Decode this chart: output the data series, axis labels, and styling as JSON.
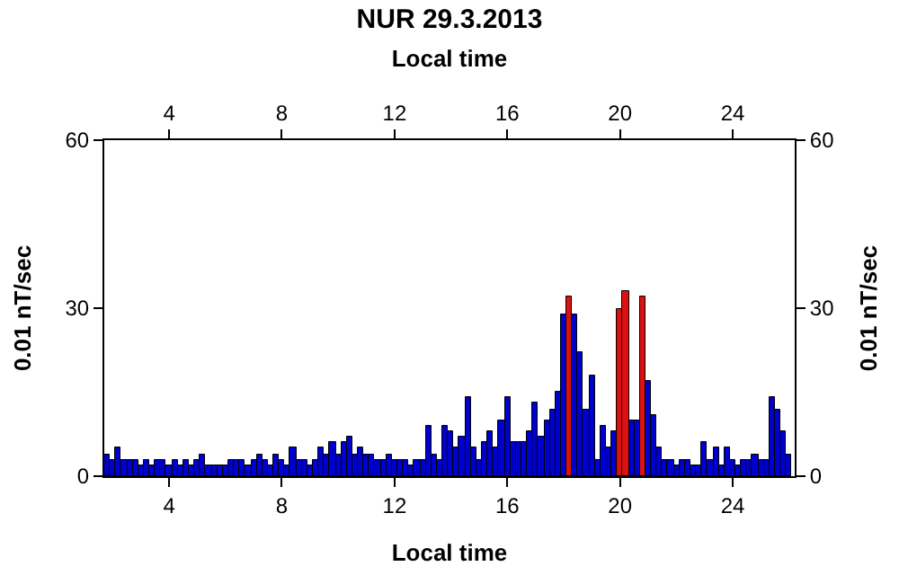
{
  "chart_data": {
    "type": "bar",
    "title": "NUR 29.3.2013",
    "xlabel": "Local time",
    "x2label": "Local time",
    "ylabel": "0.01 nT/sec",
    "y2label": "0.01 nT/sec",
    "x": [
      1.8,
      2.0,
      2.2,
      2.4,
      2.6,
      2.8,
      3.0,
      3.2,
      3.4,
      3.6,
      3.8,
      4.0,
      4.2,
      4.4,
      4.6,
      4.8,
      5.0,
      5.2,
      5.4,
      5.6,
      5.8,
      6.0,
      6.2,
      6.4,
      6.6,
      6.8,
      7.0,
      7.2,
      7.4,
      7.6,
      7.8,
      8.0,
      8.2,
      8.4,
      8.6,
      8.8,
      9.0,
      9.2,
      9.4,
      9.6,
      9.8,
      10.0,
      10.2,
      10.4,
      10.6,
      10.8,
      11.0,
      11.2,
      11.4,
      11.6,
      11.8,
      12.0,
      12.2,
      12.4,
      12.6,
      12.8,
      13.0,
      13.2,
      13.4,
      13.6,
      13.8,
      14.0,
      14.2,
      14.4,
      14.6,
      14.8,
      15.0,
      15.2,
      15.4,
      15.6,
      15.8,
      16.0,
      16.2,
      16.4,
      16.6,
      16.8,
      17.0,
      17.2,
      17.4,
      17.6,
      17.8,
      18.0,
      18.2,
      18.4,
      18.6,
      18.8,
      19.0,
      19.2,
      19.4,
      19.6,
      19.8,
      20.0,
      20.2,
      20.4,
      20.6,
      20.8,
      21.0,
      21.2,
      21.4,
      21.6,
      21.8,
      22.0,
      22.2,
      22.4,
      22.6,
      22.8,
      23.0,
      23.2,
      23.4,
      23.6,
      23.8,
      24.0,
      24.2,
      24.4,
      24.6,
      24.8,
      25.0,
      25.2,
      25.4,
      25.6,
      25.8,
      26.0
    ],
    "values": [
      4,
      3,
      5,
      3,
      3,
      3,
      2,
      3,
      2,
      3,
      3,
      2,
      3,
      2,
      3,
      2,
      3,
      4,
      2,
      2,
      2,
      2,
      3,
      3,
      3,
      2,
      3,
      4,
      3,
      2,
      4,
      3,
      2,
      5,
      3,
      3,
      2,
      3,
      5,
      4,
      6,
      4,
      6,
      7,
      4,
      5,
      4,
      4,
      3,
      3,
      4,
      3,
      3,
      3,
      2,
      3,
      3,
      9,
      4,
      3,
      9,
      8,
      5,
      7,
      14,
      5,
      3,
      6,
      8,
      5,
      10,
      14,
      6,
      6,
      6,
      8,
      13,
      7,
      10,
      12,
      15,
      29,
      32,
      29,
      22,
      12,
      18,
      3,
      9,
      5,
      8,
      30,
      33,
      10,
      10,
      32,
      17,
      11,
      5,
      3,
      3,
      2,
      3,
      3,
      2,
      2,
      6,
      3,
      5,
      2,
      5,
      3,
      2,
      3,
      3,
      4,
      3,
      3,
      14,
      12,
      8,
      4
    ],
    "colors": [
      "#0000cc",
      "#0000cc",
      "#0000cc",
      "#0000cc",
      "#0000cc",
      "#0000cc",
      "#0000cc",
      "#0000cc",
      "#0000cc",
      "#0000cc",
      "#0000cc",
      "#0000cc",
      "#0000cc",
      "#0000cc",
      "#0000cc",
      "#0000cc",
      "#0000cc",
      "#0000cc",
      "#0000cc",
      "#0000cc",
      "#0000cc",
      "#0000cc",
      "#0000cc",
      "#0000cc",
      "#0000cc",
      "#0000cc",
      "#0000cc",
      "#0000cc",
      "#0000cc",
      "#0000cc",
      "#0000cc",
      "#0000cc",
      "#0000cc",
      "#0000cc",
      "#0000cc",
      "#0000cc",
      "#0000cc",
      "#0000cc",
      "#0000cc",
      "#0000cc",
      "#0000cc",
      "#0000cc",
      "#0000cc",
      "#0000cc",
      "#0000cc",
      "#0000cc",
      "#0000cc",
      "#0000cc",
      "#0000cc",
      "#0000cc",
      "#0000cc",
      "#0000cc",
      "#0000cc",
      "#0000cc",
      "#0000cc",
      "#0000cc",
      "#0000cc",
      "#0000cc",
      "#0000cc",
      "#0000cc",
      "#0000cc",
      "#0000cc",
      "#0000cc",
      "#0000cc",
      "#0000cc",
      "#0000cc",
      "#0000cc",
      "#0000cc",
      "#0000cc",
      "#0000cc",
      "#0000cc",
      "#0000cc",
      "#0000cc",
      "#0000cc",
      "#0000cc",
      "#0000cc",
      "#0000cc",
      "#0000cc",
      "#0000cc",
      "#0000cc",
      "#0000cc",
      "#0000cc",
      "#dd1111",
      "#0000cc",
      "#0000cc",
      "#0000cc",
      "#0000cc",
      "#0000cc",
      "#0000cc",
      "#0000cc",
      "#0000cc",
      "#dd1111",
      "#dd1111",
      "#0000cc",
      "#0000cc",
      "#dd1111",
      "#0000cc",
      "#0000cc",
      "#0000cc",
      "#0000cc",
      "#0000cc",
      "#0000cc",
      "#0000cc",
      "#0000cc",
      "#0000cc",
      "#0000cc",
      "#0000cc",
      "#0000cc",
      "#0000cc",
      "#0000cc",
      "#0000cc",
      "#0000cc",
      "#0000cc",
      "#0000cc",
      "#0000cc",
      "#0000cc",
      "#0000cc",
      "#0000cc",
      "#0000cc",
      "#0000cc",
      "#0000cc",
      "#0000cc"
    ],
    "xlim": [
      1.7,
      26.2
    ],
    "x2lim": [
      1.7,
      26.2
    ],
    "ylim": [
      0,
      60
    ],
    "y2lim": [
      0,
      60
    ],
    "xticks": [
      4,
      8,
      12,
      16,
      20,
      24
    ],
    "x2ticks": [
      4,
      8,
      12,
      16,
      20,
      24
    ],
    "yticks": [
      0,
      30,
      60
    ],
    "y2ticks": [
      0,
      30,
      60
    ]
  }
}
